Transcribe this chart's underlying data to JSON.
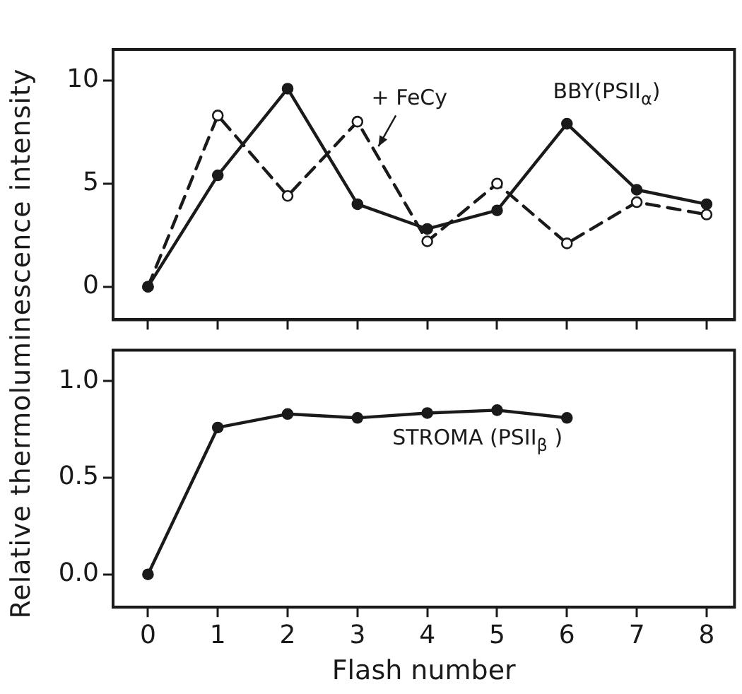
{
  "chart_data": [
    {
      "type": "line",
      "ylabel": "Relative thermoluminescence intensity",
      "x": [
        0,
        1,
        2,
        3,
        4,
        5,
        6,
        7,
        8
      ],
      "series": [
        {
          "name": "BBY(PSII$_{α}$)",
          "color": "#1a1a1a",
          "values": [
            0,
            5.4,
            9.6,
            4.0,
            2.8,
            3.7,
            7.9,
            4.7,
            4.0
          ],
          "line_style": "solid"
        },
        {
          "name": "+ FeCy",
          "color": "#1a1a1a",
          "values": [
            0,
            8.3,
            4.4,
            8.0,
            2.2,
            5.0,
            2.1,
            4.1,
            3.5
          ],
          "line_style": "dashed"
        }
      ],
      "xlim": [
        -0.5,
        8.4
      ],
      "xticks": [
        0,
        1,
        2,
        3,
        4,
        5,
        6,
        7,
        8
      ],
      "ylim": [
        -1.6,
        11.5
      ],
      "yticks": [
        0,
        5,
        10
      ],
      "tick_labels": "y",
      "marker": "circle",
      "grid": false,
      "legend": false
    },
    {
      "type": "line",
      "xlabel": "Flash number",
      "x": [
        0,
        1,
        2,
        3,
        4,
        5,
        6
      ],
      "series": [
        {
          "name": "STROMA (PSII$_{β}$ )",
          "color": "#1a1a1a",
          "values": [
            0,
            0.76,
            0.83,
            0.81,
            0.835,
            0.85,
            0.81
          ],
          "line_style": "solid"
        }
      ],
      "xlim": [
        -0.5,
        8.4
      ],
      "xticks": [
        0,
        1,
        2,
        3,
        4,
        5,
        6,
        7,
        8
      ],
      "ylim": [
        -0.17,
        1.16
      ],
      "yticks": [
        {
          "value": 0,
          "label": "0.0"
        },
        {
          "value": 0.5,
          "label": "0.5"
        },
        {
          "value": 1,
          "label": "1.0"
        }
      ],
      "marker": "circle",
      "grid": false,
      "legend": false
    }
  ]
}
